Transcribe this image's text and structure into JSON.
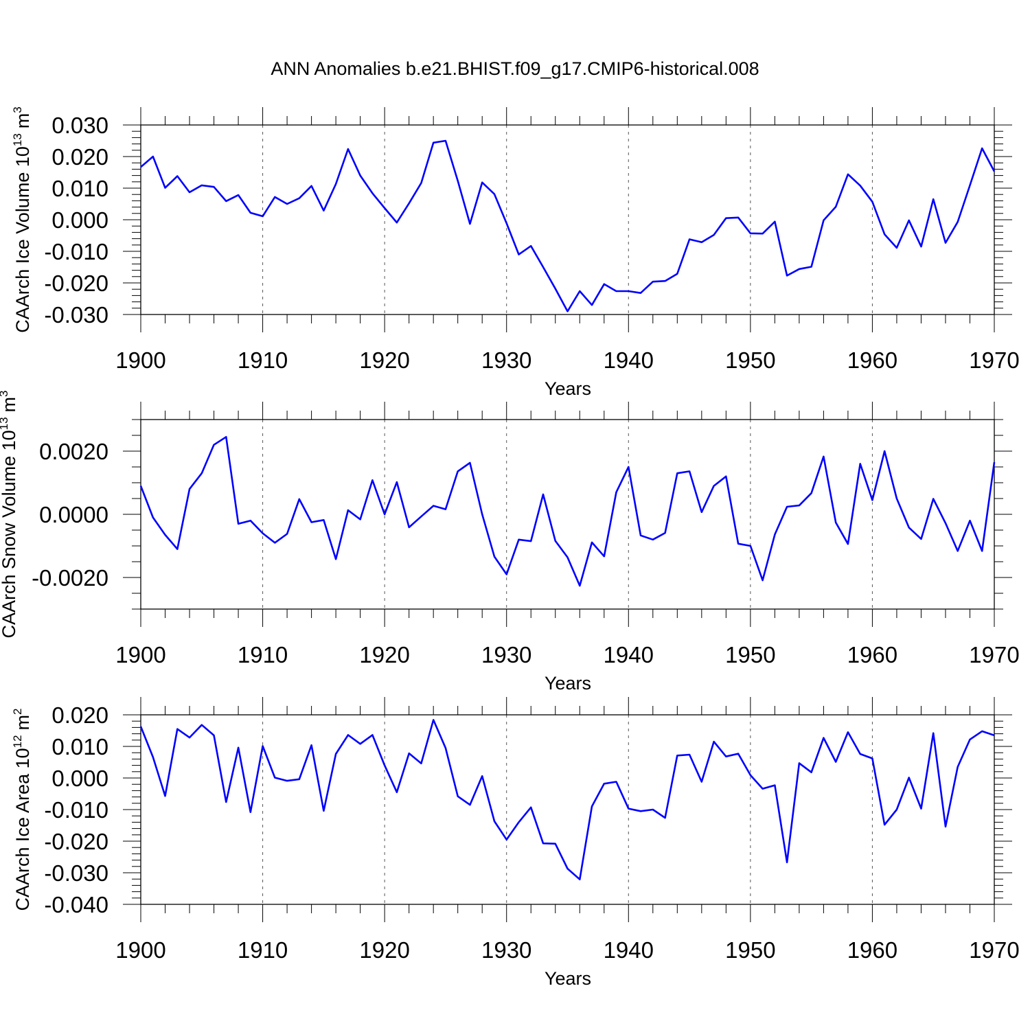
{
  "title": "ANN Anomalies b.e21.BHIST.f09_g17.CMIP6-historical.008",
  "chart_data": [
    {
      "type": "line",
      "name": "ice-volume",
      "ylabel": "CAArch Ice Volume 10",
      "ylabel_exp": "13",
      "ylabel_unit": "m",
      "ylabel_unit_exp": "3",
      "xlabel": "Years",
      "xlim": [
        1900,
        1970
      ],
      "ylim": [
        -0.03,
        0.03
      ],
      "x_ticks": [
        1900,
        1910,
        1920,
        1930,
        1940,
        1950,
        1960,
        1970
      ],
      "x_tick_labels": [
        "1900",
        "1910",
        "1920",
        "1930",
        "1940",
        "1950",
        "1960",
        "1970"
      ],
      "y_ticks": [
        -0.03,
        -0.02,
        -0.01,
        0.0,
        0.01,
        0.02,
        0.03
      ],
      "y_tick_labels": [
        "-0.030",
        "-0.020",
        "-0.010",
        "0.000",
        "0.010",
        "0.020",
        "0.030"
      ],
      "y_minor_step": 0.002,
      "color": "#0000ff",
      "x_start": 1900,
      "values": [
        0.0167,
        0.02,
        0.0101,
        0.0138,
        0.0087,
        0.0109,
        0.0104,
        0.0059,
        0.0078,
        0.0022,
        0.0011,
        0.0072,
        0.005,
        0.0068,
        0.0107,
        0.0029,
        0.0113,
        0.0224,
        0.014,
        0.0084,
        0.0037,
        -0.0009,
        0.0052,
        0.0116,
        0.0244,
        0.025,
        0.0123,
        -0.0013,
        0.0118,
        0.0081,
        -0.0011,
        -0.011,
        -0.0083,
        -0.015,
        -0.0218,
        -0.029,
        -0.0226,
        -0.027,
        -0.0204,
        -0.0226,
        -0.0226,
        -0.0232,
        -0.0196,
        -0.0194,
        -0.0171,
        -0.0062,
        -0.0071,
        -0.0048,
        0.0005,
        0.0007,
        -0.0043,
        -0.0044,
        -0.0006,
        -0.0177,
        -0.0156,
        -0.0149,
        -0.0002,
        0.0041,
        0.0144,
        0.0108,
        0.0057,
        -0.0046,
        -0.0089,
        -0.0002,
        -0.0085,
        0.0065,
        -0.0073,
        -0.0007,
        0.0109,
        0.0226,
        0.0153
      ]
    },
    {
      "type": "line",
      "name": "snow-volume",
      "ylabel": "CAArch Snow Volume 10",
      "ylabel_exp": "13",
      "ylabel_unit": "m",
      "ylabel_unit_exp": "3",
      "xlabel": "Years",
      "xlim": [
        1900,
        1970
      ],
      "ylim": [
        -0.003,
        0.003
      ],
      "x_ticks": [
        1900,
        1910,
        1920,
        1930,
        1940,
        1950,
        1960,
        1970
      ],
      "x_tick_labels": [
        "1900",
        "1910",
        "1920",
        "1930",
        "1940",
        "1950",
        "1960",
        "1970"
      ],
      "y_ticks": [
        -0.002,
        0.0,
        0.002
      ],
      "y_tick_labels": [
        "-0.0020",
        "0.0000",
        "0.0020"
      ],
      "y_minor_step": 0.0005,
      "color": "#0000ff",
      "x_start": 1900,
      "values": [
        0.0009,
        -0.0001,
        -0.00065,
        -0.0011,
        0.0008,
        0.0013,
        0.0022,
        0.00245,
        -0.0003,
        -0.0002,
        -0.0006,
        -0.0009,
        -0.00062,
        0.00048,
        -0.00025,
        -0.00018,
        -0.00142,
        0.00013,
        -0.00016,
        0.00108,
        0.0,
        0.00102,
        -0.00041,
        -7e-05,
        0.00027,
        0.00016,
        0.00136,
        0.00163,
        0.0,
        -0.00134,
        -0.0019,
        -0.0008,
        -0.00085,
        0.00063,
        -0.00084,
        -0.00136,
        -0.00226,
        -0.00089,
        -0.00133,
        0.0007,
        0.0015,
        -0.00067,
        -0.0008,
        -0.00059,
        0.0013,
        0.00136,
        7e-05,
        0.0009,
        0.0012,
        -0.00093,
        -0.001,
        -0.00209,
        -0.00064,
        0.00024,
        0.00028,
        0.00067,
        0.00183,
        -0.00026,
        -0.00094,
        0.0016,
        0.00045,
        0.002,
        0.0005,
        -0.00042,
        -0.00078,
        0.00049,
        -0.00028,
        -0.00116,
        -0.0002,
        -0.00116,
        0.00165
      ]
    },
    {
      "type": "line",
      "name": "ice-area",
      "ylabel": "CAArch Ice Area 10",
      "ylabel_exp": "12",
      "ylabel_unit": "m",
      "ylabel_unit_exp": "2",
      "xlabel": "Years",
      "xlim": [
        1900,
        1970
      ],
      "ylim": [
        -0.04,
        0.02
      ],
      "x_ticks": [
        1900,
        1910,
        1920,
        1930,
        1940,
        1950,
        1960,
        1970
      ],
      "x_tick_labels": [
        "1900",
        "1910",
        "1920",
        "1930",
        "1940",
        "1950",
        "1960",
        "1970"
      ],
      "y_ticks": [
        -0.04,
        -0.03,
        -0.02,
        -0.01,
        0.0,
        0.01,
        0.02
      ],
      "y_tick_labels": [
        "-0.040",
        "-0.030",
        "-0.020",
        "-0.010",
        "0.000",
        "0.010",
        "0.020"
      ],
      "y_minor_step": 0.002,
      "color": "#0000ff",
      "x_start": 1900,
      "values": [
        0.0163,
        0.0066,
        -0.0057,
        0.0155,
        0.0128,
        0.0168,
        0.0135,
        -0.0076,
        0.0096,
        -0.0108,
        0.0101,
        0.0001,
        -0.0009,
        -0.0004,
        0.0104,
        -0.0104,
        0.0076,
        0.0136,
        0.0108,
        0.0136,
        0.004,
        -0.0045,
        0.0078,
        0.0046,
        0.0184,
        0.0095,
        -0.0058,
        -0.0085,
        0.0006,
        -0.0137,
        -0.0195,
        -0.014,
        -0.0093,
        -0.0207,
        -0.0208,
        -0.0287,
        -0.0321,
        -0.009,
        -0.0018,
        -0.0012,
        -0.0097,
        -0.0105,
        -0.01,
        -0.0126,
        0.0071,
        0.0074,
        -0.0012,
        0.0115,
        0.0068,
        0.0077,
        0.0009,
        -0.0034,
        -0.0023,
        -0.0267,
        0.0047,
        0.0018,
        0.0127,
        0.0051,
        0.0145,
        0.0076,
        0.0062,
        -0.0148,
        -0.01,
        0.0001,
        -0.0097,
        0.0142,
        -0.0154,
        0.0035,
        0.0122,
        0.0148,
        0.0135
      ]
    }
  ]
}
